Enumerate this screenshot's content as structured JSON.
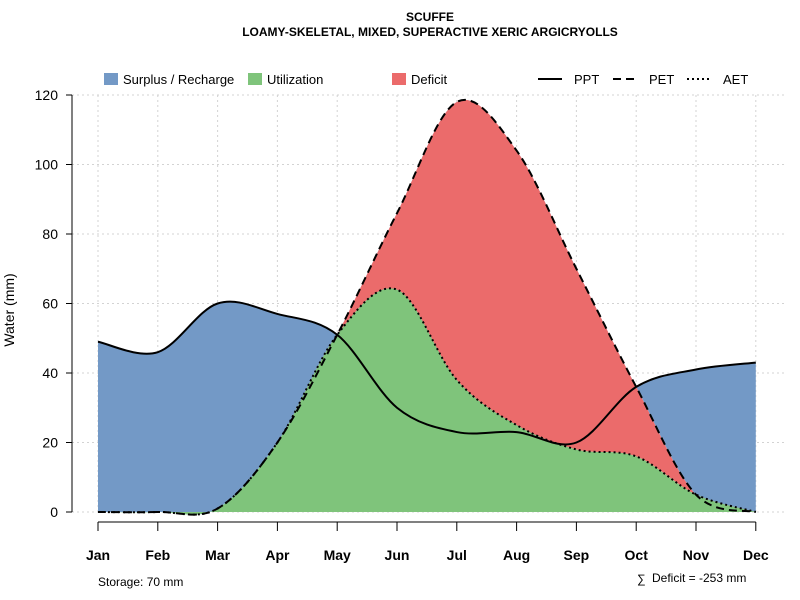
{
  "chart_data": {
    "type": "area",
    "title": "SCUFFE",
    "subtitle": "LOAMY-SKELETAL, MIXED, SUPERACTIVE XERIC ARGICRYOLLS",
    "xlabel": "",
    "ylabel": "Water (mm)",
    "ylim": [
      0,
      120
    ],
    "yticks": [
      0,
      20,
      40,
      60,
      80,
      100,
      120
    ],
    "grid": true,
    "legend_position": "top",
    "categories": [
      "Jan",
      "Feb",
      "Mar",
      "Apr",
      "May",
      "Jun",
      "Jul",
      "Aug",
      "Sep",
      "Oct",
      "Nov",
      "Dec"
    ],
    "series": [
      {
        "name": "PPT",
        "style": "solid",
        "values": [
          49,
          46,
          60,
          57,
          51,
          30,
          23,
          23,
          20,
          36,
          41,
          43
        ]
      },
      {
        "name": "PET",
        "style": "dashed",
        "values": [
          0,
          0,
          1,
          20,
          51,
          86,
          118,
          104,
          70,
          36,
          5,
          0
        ]
      },
      {
        "name": "AET",
        "style": "dotted",
        "values": [
          0,
          0,
          1,
          20,
          51,
          64,
          38,
          25,
          18,
          16,
          5,
          0
        ]
      }
    ],
    "legend_areas": [
      {
        "name": "Surplus / Recharge",
        "color": "#7399C6"
      },
      {
        "name": "Utilization",
        "color": "#7FC47B"
      },
      {
        "name": "Deficit",
        "color": "#EB6B6B"
      }
    ],
    "storage_label": "Storage: 70 mm",
    "deficit_label": "Deficit = -253 mm",
    "deficit_symbol": "∑"
  }
}
